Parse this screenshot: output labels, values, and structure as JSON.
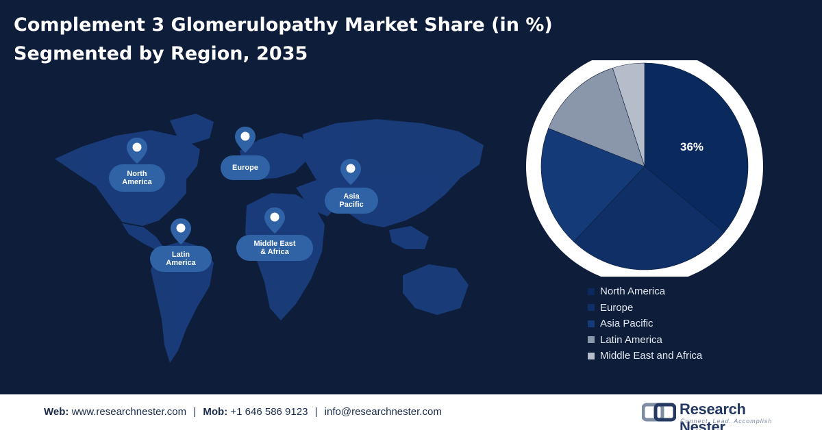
{
  "header": {
    "title_line1": "Complement 3 Glomerulopathy Market Share (in %)",
    "title_line2": "Segmented by Region, 2035"
  },
  "map": {
    "regions": [
      {
        "label": "North\nAmerica"
      },
      {
        "label": "Europe"
      },
      {
        "label": "Asia\nPacific"
      },
      {
        "label": "Latin\nAmerica"
      },
      {
        "label": "Middle East\n& Africa"
      }
    ]
  },
  "chart_data": {
    "type": "pie",
    "title": "Complement 3 Glomerulopathy Market Share (in %) Segmented by Region, 2035",
    "categories": [
      "North America",
      "Europe",
      "Asia Pacific",
      "Latin America",
      "Middle East and Africa"
    ],
    "values": [
      36,
      26,
      19,
      14,
      5
    ],
    "data_labels": [
      "36%",
      "",
      "",
      "",
      ""
    ],
    "colors": [
      "#0a2a5e",
      "#0f2f66",
      "#143a78",
      "#8a96aa",
      "#b5bdcb"
    ],
    "legend_position": "bottom-right"
  },
  "footer": {
    "web_label": "Web:",
    "web_value": "www.researchnester.com",
    "mob_label": "Mob:",
    "mob_value": "+1 646 586 9123",
    "email": "info@researchnester.com",
    "separator": "|",
    "logo_name": "Research Nester",
    "logo_tagline": "Connect. Lead. Accomplish"
  }
}
